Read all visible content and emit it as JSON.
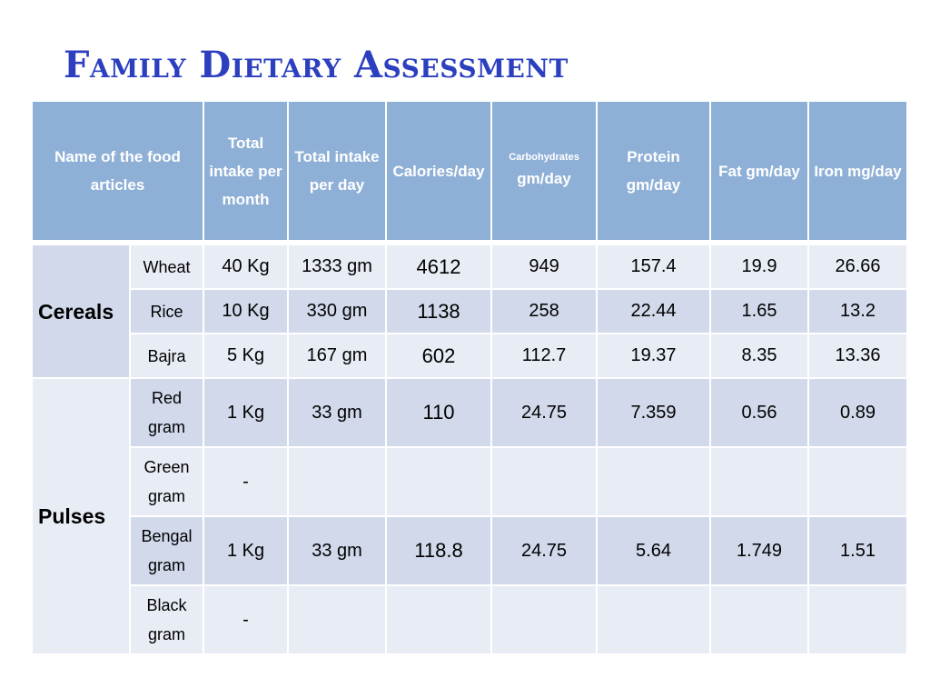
{
  "title": "Family Dietary Assessment",
  "headers": {
    "food": "Name of the food articles",
    "month": "Total intake per month",
    "day": "Total intake per day",
    "calories": "Calories/day",
    "carb_top": "Carbohydrates",
    "carb_bottom": "gm/day",
    "protein": "Protein gm/day",
    "fat": "Fat gm/day",
    "iron": "Iron mg/day"
  },
  "groups": {
    "cereals": "Cereals",
    "pulses": "Pulses"
  },
  "rows": [
    {
      "item": "Wheat",
      "month": "40 Kg",
      "day": "1333 gm",
      "calories": "4612",
      "carb": "949",
      "protein": "157.4",
      "fat": "19.9",
      "iron": "26.66"
    },
    {
      "item": "Rice",
      "month": "10 Kg",
      "day": "330 gm",
      "calories": "1138",
      "carb": "258",
      "protein": "22.44",
      "fat": "1.65",
      "iron": "13.2"
    },
    {
      "item": "Bajra",
      "month": "5 Kg",
      "day": "167 gm",
      "calories": "602",
      "carb": "112.7",
      "protein": "19.37",
      "fat": "8.35",
      "iron": "13.36"
    },
    {
      "item": "Red gram",
      "month": "1 Kg",
      "day": "33 gm",
      "calories": "110",
      "carb": "24.75",
      "protein": "7.359",
      "fat": "0.56",
      "iron": "0.89"
    },
    {
      "item": "Green gram",
      "month": "-",
      "day": "",
      "calories": "",
      "carb": "",
      "protein": "",
      "fat": "",
      "iron": ""
    },
    {
      "item": "Bengal gram",
      "month": "1 Kg",
      "day": "33 gm",
      "calories": "118.8",
      "carb": "24.75",
      "protein": "5.64",
      "fat": "1.749",
      "iron": "1.51"
    },
    {
      "item": "Black gram",
      "month": "-",
      "day": "",
      "calories": "",
      "carb": "",
      "protein": "",
      "fat": "",
      "iron": ""
    }
  ]
}
